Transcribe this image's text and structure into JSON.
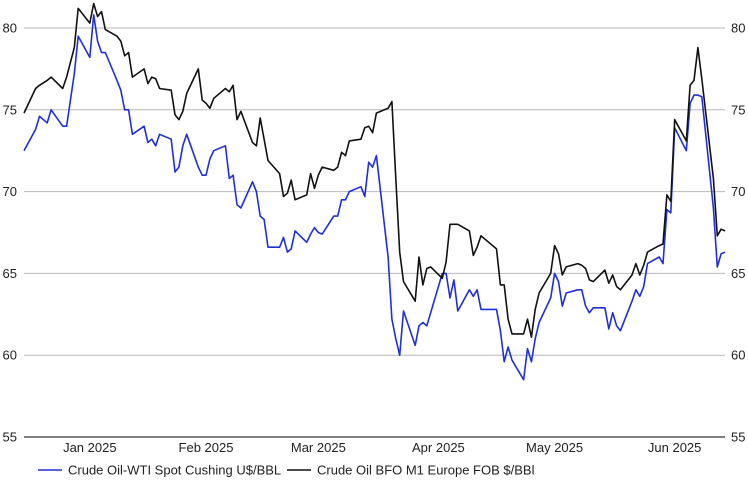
{
  "chart_data": {
    "type": "line",
    "title": "",
    "xlabel": "",
    "ylabel": "",
    "ylim": [
      55,
      80
    ],
    "yticks": [
      55,
      60,
      65,
      70,
      75,
      80
    ],
    "y_axis_sides": [
      "left",
      "right"
    ],
    "grid": "horizontal",
    "legend_position": "bottom",
    "xticks": [
      "Jan 2025",
      "Feb 2025",
      "Mar 2025",
      "Apr 2025",
      "May 2025",
      "Jun 2025"
    ],
    "x_range": [
      "2024-12-20",
      "2025-06-19"
    ],
    "xtick_dates": [
      "2025-01-06",
      "2025-02-05",
      "2025-03-06",
      "2025-04-06",
      "2025-05-06",
      "2025-06-06"
    ],
    "series": [
      {
        "name": "Crude Oil-WTI Spot Cushing U$/BBL",
        "color": "#1f2fd8",
        "points": [
          [
            "2024-12-20",
            72.5
          ],
          [
            "2024-12-23",
            73.8
          ],
          [
            "2024-12-24",
            74.6
          ],
          [
            "2024-12-26",
            74.2
          ],
          [
            "2024-12-27",
            75.0
          ],
          [
            "2024-12-30",
            74.0
          ],
          [
            "2024-12-31",
            74.0
          ],
          [
            "2025-01-02",
            77.2
          ],
          [
            "2025-01-03",
            79.5
          ],
          [
            "2025-01-06",
            78.2
          ],
          [
            "2025-01-07",
            80.8
          ],
          [
            "2025-01-08",
            79.2
          ],
          [
            "2025-01-09",
            78.5
          ],
          [
            "2025-01-10",
            78.5
          ],
          [
            "2025-01-13",
            76.8
          ],
          [
            "2025-01-14",
            76.2
          ],
          [
            "2025-01-15",
            75.0
          ],
          [
            "2025-01-16",
            75.0
          ],
          [
            "2025-01-17",
            73.5
          ],
          [
            "2025-01-20",
            74.0
          ],
          [
            "2025-01-21",
            73.0
          ],
          [
            "2025-01-22",
            73.2
          ],
          [
            "2025-01-23",
            72.8
          ],
          [
            "2025-01-24",
            73.5
          ],
          [
            "2025-01-27",
            73.2
          ],
          [
            "2025-01-28",
            71.2
          ],
          [
            "2025-01-29",
            71.5
          ],
          [
            "2025-01-30",
            72.8
          ],
          [
            "2025-01-31",
            73.5
          ],
          [
            "2025-02-03",
            71.5
          ],
          [
            "2025-02-04",
            71.0
          ],
          [
            "2025-02-05",
            71.0
          ],
          [
            "2025-02-06",
            72.0
          ],
          [
            "2025-02-07",
            72.5
          ],
          [
            "2025-02-10",
            72.8
          ],
          [
            "2025-02-11",
            70.8
          ],
          [
            "2025-02-12",
            71.0
          ],
          [
            "2025-02-13",
            69.2
          ],
          [
            "2025-02-14",
            69.0
          ],
          [
            "2025-02-17",
            70.6
          ],
          [
            "2025-02-18",
            70.0
          ],
          [
            "2025-02-19",
            68.5
          ],
          [
            "2025-02-20",
            68.3
          ],
          [
            "2025-02-21",
            66.6
          ],
          [
            "2025-02-24",
            66.6
          ],
          [
            "2025-02-25",
            67.2
          ],
          [
            "2025-02-26",
            66.3
          ],
          [
            "2025-02-27",
            66.5
          ],
          [
            "2025-02-28",
            67.6
          ],
          [
            "2025-03-03",
            66.9
          ],
          [
            "2025-03-04",
            67.4
          ],
          [
            "2025-03-05",
            67.8
          ],
          [
            "2025-03-06",
            67.5
          ],
          [
            "2025-03-07",
            67.4
          ],
          [
            "2025-03-10",
            68.5
          ],
          [
            "2025-03-11",
            68.5
          ],
          [
            "2025-03-12",
            69.5
          ],
          [
            "2025-03-13",
            69.5
          ],
          [
            "2025-03-14",
            70.0
          ],
          [
            "2025-03-17",
            70.3
          ],
          [
            "2025-03-18",
            69.7
          ],
          [
            "2025-03-19",
            71.8
          ],
          [
            "2025-03-20",
            71.5
          ],
          [
            "2025-03-21",
            72.2
          ],
          [
            "2025-03-24",
            66.0
          ],
          [
            "2025-03-25",
            62.2
          ],
          [
            "2025-03-26",
            61.0
          ],
          [
            "2025-03-27",
            60.0
          ],
          [
            "2025-03-28",
            62.7
          ],
          [
            "2025-03-31",
            60.6
          ],
          [
            "2025-04-01",
            61.8
          ],
          [
            "2025-04-02",
            62.0
          ],
          [
            "2025-04-03",
            61.8
          ],
          [
            "2025-04-04",
            62.6
          ],
          [
            "2025-04-07",
            65.0
          ],
          [
            "2025-04-08",
            65.0
          ],
          [
            "2025-04-09",
            63.5
          ],
          [
            "2025-04-10",
            64.6
          ],
          [
            "2025-04-11",
            62.7
          ],
          [
            "2025-04-14",
            64.0
          ],
          [
            "2025-04-15",
            63.6
          ],
          [
            "2025-04-16",
            64.0
          ],
          [
            "2025-04-17",
            62.8
          ],
          [
            "2025-04-21",
            62.8
          ],
          [
            "2025-04-22",
            61.5
          ],
          [
            "2025-04-23",
            59.6
          ],
          [
            "2025-04-24",
            60.5
          ],
          [
            "2025-04-25",
            59.7
          ],
          [
            "2025-04-28",
            58.5
          ],
          [
            "2025-04-29",
            60.4
          ],
          [
            "2025-04-30",
            59.6
          ],
          [
            "2025-05-01",
            61.0
          ],
          [
            "2025-05-02",
            62.0
          ],
          [
            "2025-05-05",
            63.5
          ],
          [
            "2025-05-06",
            65.0
          ],
          [
            "2025-05-07",
            64.5
          ],
          [
            "2025-05-08",
            63.0
          ],
          [
            "2025-05-09",
            63.8
          ],
          [
            "2025-05-12",
            64.0
          ],
          [
            "2025-05-13",
            64.0
          ],
          [
            "2025-05-14",
            63.0
          ],
          [
            "2025-05-15",
            62.6
          ],
          [
            "2025-05-16",
            62.9
          ],
          [
            "2025-05-19",
            62.9
          ],
          [
            "2025-05-20",
            61.6
          ],
          [
            "2025-05-21",
            62.6
          ],
          [
            "2025-05-22",
            61.8
          ],
          [
            "2025-05-23",
            61.5
          ],
          [
            "2025-05-26",
            63.3
          ],
          [
            "2025-05-27",
            64.0
          ],
          [
            "2025-05-28",
            63.6
          ],
          [
            "2025-05-29",
            64.2
          ],
          [
            "2025-05-30",
            65.6
          ],
          [
            "2025-06-02",
            66.0
          ],
          [
            "2025-06-03",
            65.6
          ],
          [
            "2025-06-04",
            68.9
          ],
          [
            "2025-06-05",
            68.7
          ],
          [
            "2025-06-06",
            73.9
          ],
          [
            "2025-06-09",
            72.5
          ],
          [
            "2025-06-10",
            75.4
          ],
          [
            "2025-06-11",
            75.9
          ],
          [
            "2025-06-12",
            75.9
          ],
          [
            "2025-06-13",
            75.8
          ],
          [
            "2025-06-16",
            69.0
          ],
          [
            "2025-06-17",
            65.4
          ],
          [
            "2025-06-18",
            66.2
          ],
          [
            "2025-06-19",
            66.3
          ]
        ]
      },
      {
        "name": "Crude Oil BFO M1 Europe FOB $/BBl",
        "color": "#111111",
        "points": [
          [
            "2024-12-20",
            74.8
          ],
          [
            "2024-12-23",
            76.3
          ],
          [
            "2024-12-24",
            76.5
          ],
          [
            "2024-12-26",
            76.8
          ],
          [
            "2024-12-27",
            77.0
          ],
          [
            "2024-12-30",
            76.3
          ],
          [
            "2024-12-31",
            77.0
          ],
          [
            "2025-01-02",
            78.8
          ],
          [
            "2025-01-03",
            81.2
          ],
          [
            "2025-01-06",
            80.3
          ],
          [
            "2025-01-07",
            81.5
          ],
          [
            "2025-01-08",
            80.7
          ],
          [
            "2025-01-09",
            81.0
          ],
          [
            "2025-01-10",
            79.9
          ],
          [
            "2025-01-13",
            79.5
          ],
          [
            "2025-01-14",
            79.2
          ],
          [
            "2025-01-15",
            78.3
          ],
          [
            "2025-01-16",
            78.5
          ],
          [
            "2025-01-17",
            77.0
          ],
          [
            "2025-01-20",
            77.5
          ],
          [
            "2025-01-21",
            76.6
          ],
          [
            "2025-01-22",
            77.0
          ],
          [
            "2025-01-23",
            76.9
          ],
          [
            "2025-01-24",
            76.3
          ],
          [
            "2025-01-27",
            76.2
          ],
          [
            "2025-01-28",
            74.7
          ],
          [
            "2025-01-29",
            74.4
          ],
          [
            "2025-01-30",
            74.9
          ],
          [
            "2025-01-31",
            76.0
          ],
          [
            "2025-02-03",
            77.5
          ],
          [
            "2025-02-04",
            75.6
          ],
          [
            "2025-02-05",
            75.4
          ],
          [
            "2025-02-06",
            75.1
          ],
          [
            "2025-02-07",
            75.7
          ],
          [
            "2025-02-10",
            76.3
          ],
          [
            "2025-02-11",
            76.1
          ],
          [
            "2025-02-12",
            76.5
          ],
          [
            "2025-02-13",
            74.4
          ],
          [
            "2025-02-14",
            74.9
          ],
          [
            "2025-02-17",
            73.0
          ],
          [
            "2025-02-18",
            72.8
          ],
          [
            "2025-02-19",
            74.5
          ],
          [
            "2025-02-20",
            73.2
          ],
          [
            "2025-02-21",
            71.9
          ],
          [
            "2025-02-24",
            71.1
          ],
          [
            "2025-02-25",
            69.7
          ],
          [
            "2025-02-26",
            69.9
          ],
          [
            "2025-02-27",
            70.7
          ],
          [
            "2025-02-28",
            69.5
          ],
          [
            "2025-03-03",
            69.8
          ],
          [
            "2025-03-04",
            71.1
          ],
          [
            "2025-03-05",
            70.2
          ],
          [
            "2025-03-06",
            71.0
          ],
          [
            "2025-03-07",
            71.5
          ],
          [
            "2025-03-10",
            71.3
          ],
          [
            "2025-03-11",
            71.5
          ],
          [
            "2025-03-12",
            72.4
          ],
          [
            "2025-03-13",
            72.2
          ],
          [
            "2025-03-14",
            73.1
          ],
          [
            "2025-03-17",
            73.2
          ],
          [
            "2025-03-18",
            73.9
          ],
          [
            "2025-03-19",
            74.0
          ],
          [
            "2025-03-20",
            73.6
          ],
          [
            "2025-03-21",
            74.8
          ],
          [
            "2025-03-24",
            75.1
          ],
          [
            "2025-03-25",
            75.5
          ],
          [
            "2025-03-26",
            70.8
          ],
          [
            "2025-03-27",
            66.3
          ],
          [
            "2025-03-28",
            64.5
          ],
          [
            "2025-03-31",
            63.3
          ],
          [
            "2025-04-01",
            66.0
          ],
          [
            "2025-04-02",
            64.3
          ],
          [
            "2025-04-03",
            65.3
          ],
          [
            "2025-04-04",
            65.4
          ],
          [
            "2025-04-07",
            64.7
          ],
          [
            "2025-04-08",
            65.7
          ],
          [
            "2025-04-09",
            68.0
          ],
          [
            "2025-04-10",
            68.0
          ],
          [
            "2025-04-11",
            68.0
          ],
          [
            "2025-04-14",
            67.6
          ],
          [
            "2025-04-15",
            66.1
          ],
          [
            "2025-04-16",
            66.6
          ],
          [
            "2025-04-17",
            67.3
          ],
          [
            "2025-04-21",
            66.5
          ],
          [
            "2025-04-22",
            64.3
          ],
          [
            "2025-04-23",
            64.3
          ],
          [
            "2025-04-24",
            62.2
          ],
          [
            "2025-04-25",
            61.3
          ],
          [
            "2025-04-28",
            61.3
          ],
          [
            "2025-04-29",
            62.2
          ],
          [
            "2025-04-30",
            61.1
          ],
          [
            "2025-05-01",
            62.8
          ],
          [
            "2025-05-02",
            63.8
          ],
          [
            "2025-05-05",
            65.0
          ],
          [
            "2025-05-06",
            66.7
          ],
          [
            "2025-05-07",
            66.2
          ],
          [
            "2025-05-08",
            64.9
          ],
          [
            "2025-05-09",
            65.4
          ],
          [
            "2025-05-12",
            65.6
          ],
          [
            "2025-05-13",
            65.5
          ],
          [
            "2025-05-14",
            65.3
          ],
          [
            "2025-05-15",
            64.6
          ],
          [
            "2025-05-16",
            64.5
          ],
          [
            "2025-05-19",
            65.2
          ],
          [
            "2025-05-20",
            64.4
          ],
          [
            "2025-05-21",
            64.9
          ],
          [
            "2025-05-22",
            64.2
          ],
          [
            "2025-05-23",
            64.0
          ],
          [
            "2025-05-26",
            64.9
          ],
          [
            "2025-05-27",
            65.6
          ],
          [
            "2025-05-28",
            64.9
          ],
          [
            "2025-05-29",
            65.5
          ],
          [
            "2025-05-30",
            66.3
          ],
          [
            "2025-06-02",
            66.7
          ],
          [
            "2025-06-03",
            66.8
          ],
          [
            "2025-06-04",
            69.8
          ],
          [
            "2025-06-05",
            69.4
          ],
          [
            "2025-06-06",
            74.4
          ],
          [
            "2025-06-09",
            73.1
          ],
          [
            "2025-06-10",
            76.5
          ],
          [
            "2025-06-11",
            76.8
          ],
          [
            "2025-06-12",
            78.8
          ],
          [
            "2025-06-13",
            76.9
          ],
          [
            "2025-06-16",
            70.8
          ],
          [
            "2025-06-17",
            67.3
          ],
          [
            "2025-06-18",
            67.7
          ],
          [
            "2025-06-19",
            67.6
          ]
        ]
      }
    ]
  }
}
